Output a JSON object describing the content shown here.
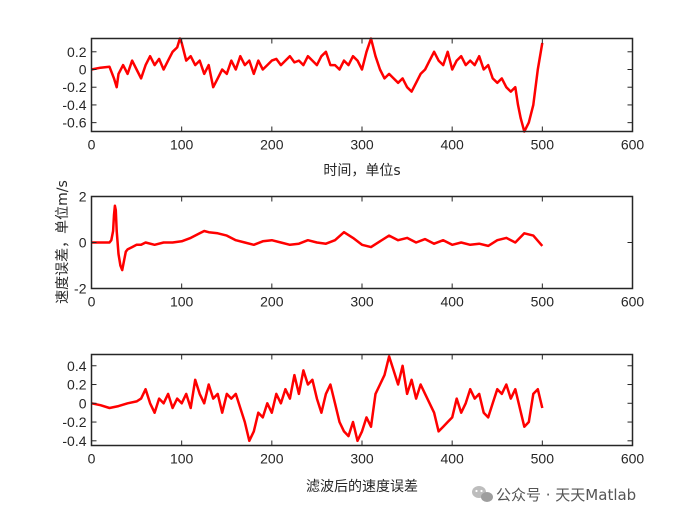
{
  "chart_data": [
    {
      "type": "line",
      "xlabel": "时间，单位s",
      "ylabel": "",
      "xlim": [
        0,
        600
      ],
      "ylim": [
        -0.7,
        0.35
      ],
      "xticks": [
        0,
        100,
        200,
        300,
        400,
        500,
        600
      ],
      "yticks": [
        -0.6,
        -0.4,
        -0.2,
        0,
        0.2
      ],
      "ytick_labels": [
        "-0.6",
        "-0.4",
        "-0.2",
        "0",
        "0.2"
      ],
      "color": "#ff0000",
      "series": [
        {
          "x": [
            0,
            10,
            20,
            25,
            28,
            30,
            35,
            40,
            45,
            50,
            55,
            60,
            65,
            70,
            75,
            80,
            85,
            90,
            95,
            98,
            100,
            105,
            110,
            115,
            120,
            125,
            130,
            135,
            140,
            145,
            150,
            155,
            160,
            165,
            170,
            175,
            180,
            185,
            190,
            195,
            200,
            205,
            210,
            215,
            220,
            225,
            230,
            235,
            240,
            245,
            250,
            255,
            260,
            265,
            270,
            275,
            280,
            285,
            290,
            295,
            300,
            305,
            310,
            315,
            320,
            325,
            330,
            335,
            340,
            345,
            350,
            355,
            360,
            365,
            370,
            375,
            380,
            385,
            390,
            395,
            400,
            405,
            410,
            415,
            420,
            425,
            430,
            435,
            440,
            445,
            450,
            455,
            460,
            465,
            470,
            473,
            476,
            480,
            485,
            490,
            495,
            500
          ],
          "y": [
            0.0,
            0.02,
            0.03,
            -0.1,
            -0.2,
            -0.05,
            0.05,
            -0.05,
            0.1,
            0.0,
            -0.1,
            0.05,
            0.15,
            0.05,
            0.12,
            0.0,
            0.1,
            0.2,
            0.25,
            0.35,
            0.3,
            0.1,
            0.15,
            0.05,
            0.1,
            -0.05,
            0.05,
            -0.2,
            -0.1,
            0.0,
            -0.05,
            0.1,
            0.0,
            0.15,
            0.05,
            0.1,
            -0.05,
            0.1,
            0.0,
            0.05,
            0.1,
            0.12,
            0.05,
            0.1,
            0.15,
            0.08,
            0.1,
            0.05,
            0.15,
            0.1,
            0.05,
            0.15,
            0.2,
            0.05,
            0.05,
            0.0,
            0.1,
            0.05,
            0.15,
            0.1,
            0.0,
            0.2,
            0.35,
            0.15,
            0.0,
            -0.1,
            -0.05,
            -0.1,
            -0.15,
            -0.1,
            -0.2,
            -0.25,
            -0.15,
            -0.05,
            0.0,
            0.1,
            0.2,
            0.1,
            0.05,
            0.2,
            0.0,
            0.1,
            0.15,
            0.05,
            0.1,
            0.05,
            0.15,
            0.0,
            0.05,
            -0.1,
            -0.15,
            -0.1,
            -0.2,
            -0.25,
            -0.2,
            -0.4,
            -0.55,
            -0.7,
            -0.6,
            -0.4,
            0.0,
            0.3
          ]
        }
      ]
    },
    {
      "type": "line",
      "xlabel": "",
      "ylabel": "速度误差，单位m/s",
      "xlim": [
        0,
        600
      ],
      "ylim": [
        -2,
        2
      ],
      "xticks": [
        0,
        100,
        200,
        300,
        400,
        500,
        600
      ],
      "yticks": [
        -2,
        0,
        2
      ],
      "ytick_labels": [
        "-2",
        "0",
        "2"
      ],
      "color": "#ff0000",
      "series": [
        {
          "x": [
            0,
            10,
            20,
            22,
            24,
            25,
            26,
            27,
            28,
            30,
            32,
            34,
            36,
            38,
            40,
            45,
            50,
            55,
            60,
            70,
            80,
            90,
            100,
            110,
            120,
            125,
            130,
            140,
            150,
            160,
            170,
            180,
            190,
            200,
            210,
            220,
            230,
            240,
            250,
            260,
            270,
            280,
            290,
            300,
            310,
            320,
            330,
            340,
            350,
            360,
            370,
            380,
            390,
            400,
            410,
            420,
            430,
            440,
            450,
            460,
            470,
            480,
            490,
            500
          ],
          "y": [
            0,
            0,
            0,
            0.1,
            0.5,
            1.2,
            1.6,
            1.4,
            0.5,
            -0.5,
            -1.0,
            -1.2,
            -0.8,
            -0.4,
            -0.3,
            -0.2,
            -0.1,
            -0.1,
            0.0,
            -0.1,
            0.0,
            0.0,
            0.05,
            0.2,
            0.4,
            0.5,
            0.45,
            0.4,
            0.3,
            0.1,
            0.0,
            -0.1,
            0.05,
            0.1,
            0.0,
            -0.1,
            -0.05,
            0.1,
            0.0,
            -0.05,
            0.1,
            0.45,
            0.2,
            -0.1,
            -0.2,
            0.05,
            0.3,
            0.1,
            0.2,
            0.0,
            0.15,
            -0.05,
            0.1,
            -0.1,
            0.0,
            -0.1,
            -0.05,
            -0.15,
            0.1,
            0.2,
            0.0,
            0.4,
            0.3,
            -0.15
          ]
        }
      ]
    },
    {
      "type": "line",
      "xlabel": "滤波后的速度误差",
      "ylabel": "",
      "xlim": [
        0,
        600
      ],
      "ylim": [
        -0.45,
        0.52
      ],
      "xticks": [
        0,
        100,
        200,
        300,
        400,
        500,
        600
      ],
      "yticks": [
        -0.4,
        -0.2,
        0,
        0.2,
        0.4
      ],
      "ytick_labels": [
        "-0.4",
        "-0.2",
        "0",
        "0.2",
        "0.4"
      ],
      "color": "#ff0000",
      "series": [
        {
          "x": [
            0,
            10,
            20,
            30,
            40,
            50,
            55,
            60,
            65,
            70,
            75,
            80,
            85,
            90,
            95,
            100,
            105,
            110,
            115,
            120,
            125,
            130,
            135,
            140,
            145,
            150,
            155,
            160,
            165,
            170,
            175,
            180,
            185,
            190,
            195,
            200,
            205,
            210,
            215,
            220,
            225,
            230,
            235,
            240,
            245,
            250,
            255,
            260,
            265,
            270,
            275,
            280,
            285,
            290,
            295,
            300,
            305,
            310,
            315,
            320,
            325,
            330,
            335,
            340,
            345,
            350,
            355,
            360,
            365,
            370,
            375,
            380,
            385,
            390,
            395,
            400,
            405,
            410,
            415,
            420,
            425,
            430,
            435,
            440,
            445,
            450,
            455,
            460,
            465,
            470,
            475,
            480,
            485,
            490,
            495,
            500
          ],
          "y": [
            0.0,
            -0.02,
            -0.05,
            -0.03,
            0.0,
            0.02,
            0.05,
            0.15,
            0.0,
            -0.1,
            0.05,
            0.0,
            0.1,
            -0.05,
            0.05,
            0.0,
            0.1,
            -0.05,
            0.25,
            0.1,
            0.0,
            0.2,
            0.05,
            0.1,
            -0.1,
            0.1,
            0.05,
            0.1,
            -0.05,
            -0.2,
            -0.4,
            -0.3,
            -0.1,
            -0.15,
            0.0,
            -0.1,
            0.1,
            0.0,
            0.15,
            0.05,
            0.3,
            0.1,
            0.35,
            0.2,
            0.25,
            0.05,
            -0.1,
            0.1,
            0.2,
            0.0,
            -0.2,
            -0.3,
            -0.35,
            -0.2,
            -0.4,
            -0.3,
            -0.15,
            -0.25,
            0.1,
            0.2,
            0.3,
            0.5,
            0.35,
            0.2,
            0.4,
            0.1,
            0.25,
            0.05,
            0.2,
            0.1,
            0.0,
            -0.1,
            -0.3,
            -0.25,
            -0.2,
            -0.15,
            0.05,
            -0.1,
            0.0,
            0.15,
            0.05,
            0.1,
            -0.1,
            -0.15,
            0.0,
            0.15,
            0.1,
            0.2,
            0.05,
            0.15,
            -0.05,
            -0.25,
            -0.2,
            0.1,
            0.15,
            -0.05
          ]
        }
      ]
    }
  ],
  "watermark": "公众号 · 天天Matlab"
}
